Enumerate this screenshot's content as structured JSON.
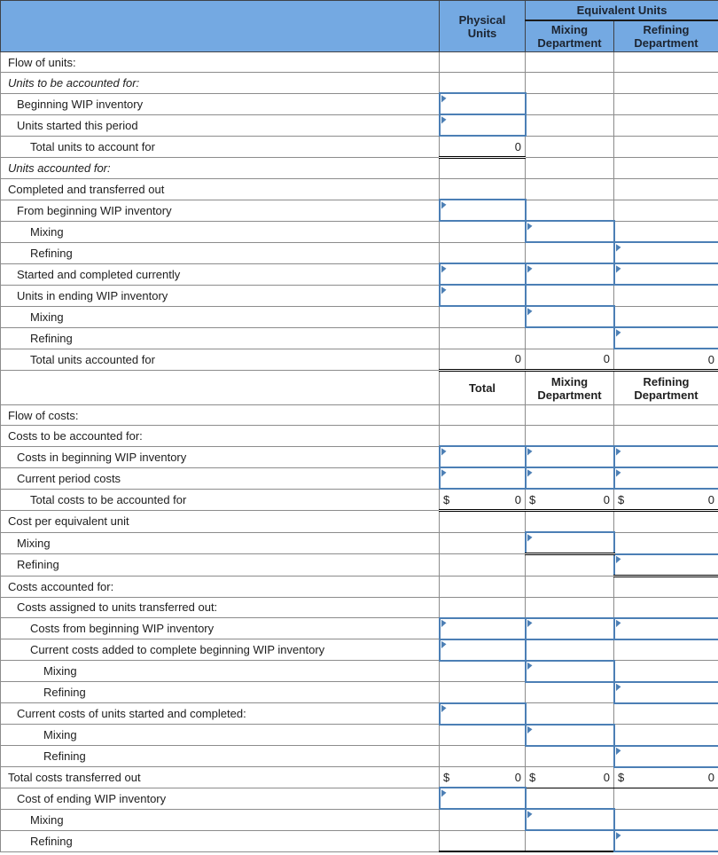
{
  "colors": {
    "header_bg": "#74a9e2",
    "header_text": "#1c2430",
    "input_border": "#4c7fb5",
    "grid_line": "#8c8c8c",
    "total_line": "#000000"
  },
  "header1": {
    "physical_units": "Physical Units",
    "equivalent_units": "Equivalent Units",
    "mixing": "Mixing Department",
    "refining": "Refining Department"
  },
  "header2": {
    "total": "Total",
    "mixing": "Mixing Department",
    "refining": "Refining Department"
  },
  "rows": [
    {
      "label": "Flow of units:",
      "indent": 0,
      "italic": false,
      "cells": [
        {
          "t": "b"
        },
        {
          "t": "b"
        },
        {
          "t": "b"
        }
      ]
    },
    {
      "label": "Units to be accounted for:",
      "indent": 0,
      "italic": true,
      "cells": [
        {
          "t": "b"
        },
        {
          "t": "b"
        },
        {
          "t": "b"
        }
      ]
    },
    {
      "label": "Beginning WIP inventory",
      "indent": 1,
      "italic": false,
      "cells": [
        {
          "t": "in"
        },
        {
          "t": "b"
        },
        {
          "t": "b"
        }
      ]
    },
    {
      "label": "Units started this period",
      "indent": 1,
      "italic": false,
      "cells": [
        {
          "t": "in"
        },
        {
          "t": "b"
        },
        {
          "t": "b"
        }
      ]
    },
    {
      "label": "Total units to account for",
      "indent": 2,
      "italic": false,
      "cells": [
        {
          "t": "z",
          "v": "0"
        },
        {
          "t": "b"
        },
        {
          "t": "b"
        }
      ]
    },
    {
      "label": "Units accounted for:",
      "indent": 0,
      "italic": true,
      "cells": [
        {
          "t": "b"
        },
        {
          "t": "b"
        },
        {
          "t": "b"
        }
      ]
    },
    {
      "label": "Completed and transferred out",
      "indent": 0,
      "italic": false,
      "cells": [
        {
          "t": "b"
        },
        {
          "t": "b"
        },
        {
          "t": "b"
        }
      ]
    },
    {
      "label": "From beginning WIP inventory",
      "indent": 1,
      "italic": false,
      "cells": [
        {
          "t": "in"
        },
        {
          "t": "b"
        },
        {
          "t": "b"
        }
      ]
    },
    {
      "label": "Mixing",
      "indent": 2,
      "italic": false,
      "cells": [
        {
          "t": "b"
        },
        {
          "t": "in"
        },
        {
          "t": "b"
        }
      ]
    },
    {
      "label": "Refining",
      "indent": 2,
      "italic": false,
      "cells": [
        {
          "t": "b"
        },
        {
          "t": "b"
        },
        {
          "t": "in"
        }
      ]
    },
    {
      "label": "Started and completed currently",
      "indent": 1,
      "italic": false,
      "cells": [
        {
          "t": "in"
        },
        {
          "t": "in"
        },
        {
          "t": "in"
        }
      ]
    },
    {
      "label": "Units in ending WIP inventory",
      "indent": 1,
      "italic": false,
      "cells": [
        {
          "t": "in"
        },
        {
          "t": "b"
        },
        {
          "t": "b"
        }
      ]
    },
    {
      "label": "Mixing",
      "indent": 2,
      "italic": false,
      "cells": [
        {
          "t": "b"
        },
        {
          "t": "in"
        },
        {
          "t": "b"
        }
      ]
    },
    {
      "label": "Refining",
      "indent": 2,
      "italic": false,
      "cells": [
        {
          "t": "b"
        },
        {
          "t": "b"
        },
        {
          "t": "in"
        }
      ]
    },
    {
      "label": "Total units accounted for",
      "indent": 2,
      "italic": false,
      "cells": [
        {
          "t": "z",
          "v": "0"
        },
        {
          "t": "z",
          "v": "0"
        },
        {
          "t": "z",
          "v": "0"
        }
      ]
    },
    {
      "type": "mid_header"
    },
    {
      "label": "Flow of costs:",
      "indent": 0,
      "italic": false,
      "cells": [
        {
          "t": "b"
        },
        {
          "t": "b"
        },
        {
          "t": "b"
        }
      ]
    },
    {
      "label": "Costs to be accounted for:",
      "indent": 0,
      "italic": false,
      "cells": [
        {
          "t": "b"
        },
        {
          "t": "b"
        },
        {
          "t": "b"
        }
      ]
    },
    {
      "label": "Costs in beginning WIP inventory",
      "indent": 1,
      "italic": false,
      "cells": [
        {
          "t": "in"
        },
        {
          "t": "in"
        },
        {
          "t": "in"
        }
      ]
    },
    {
      "label": "Current period costs",
      "indent": 1,
      "italic": false,
      "cells": [
        {
          "t": "in"
        },
        {
          "t": "in"
        },
        {
          "t": "in"
        }
      ]
    },
    {
      "label": "Total costs to be accounted for",
      "indent": 2,
      "italic": false,
      "cells": [
        {
          "t": "d2",
          "cur": "$",
          "v": "0"
        },
        {
          "t": "d2",
          "cur": "$",
          "v": "0"
        },
        {
          "t": "d2",
          "cur": "$",
          "v": "0"
        }
      ]
    },
    {
      "label": "Cost per equivalent unit",
      "indent": 0,
      "italic": false,
      "cells": [
        {
          "t": "b"
        },
        {
          "t": "b"
        },
        {
          "t": "b"
        }
      ]
    },
    {
      "label": "Mixing",
      "indent": 1,
      "italic": false,
      "cells": [
        {
          "t": "b"
        },
        {
          "t": "in2"
        },
        {
          "t": "b"
        }
      ]
    },
    {
      "label": "Refining",
      "indent": 1,
      "italic": false,
      "cells": [
        {
          "t": "b"
        },
        {
          "t": "b"
        },
        {
          "t": "in2"
        }
      ]
    },
    {
      "label": "Costs accounted for:",
      "indent": 0,
      "italic": false,
      "cells": [
        {
          "t": "b"
        },
        {
          "t": "b"
        },
        {
          "t": "b"
        }
      ]
    },
    {
      "label": "Costs assigned to units transferred out:",
      "indent": 1,
      "italic": false,
      "cells": [
        {
          "t": "b"
        },
        {
          "t": "b"
        },
        {
          "t": "b"
        }
      ]
    },
    {
      "label": "Costs from beginning WIP inventory",
      "indent": 2,
      "italic": false,
      "cells": [
        {
          "t": "in"
        },
        {
          "t": "in"
        },
        {
          "t": "in"
        }
      ]
    },
    {
      "label": "Current costs added to complete beginning WIP inventory",
      "indent": 2,
      "italic": false,
      "cells": [
        {
          "t": "in"
        },
        {
          "t": "b"
        },
        {
          "t": "b"
        }
      ]
    },
    {
      "label": "Mixing",
      "indent": 3,
      "italic": false,
      "cells": [
        {
          "t": "b"
        },
        {
          "t": "in"
        },
        {
          "t": "b"
        }
      ]
    },
    {
      "label": "Refining",
      "indent": 3,
      "italic": false,
      "cells": [
        {
          "t": "b"
        },
        {
          "t": "b"
        },
        {
          "t": "in"
        }
      ]
    },
    {
      "label": "Current costs of units started and completed:",
      "indent": 1,
      "italic": false,
      "cells": [
        {
          "t": "in"
        },
        {
          "t": "b"
        },
        {
          "t": "b"
        }
      ]
    },
    {
      "label": "Mixing",
      "indent": 3,
      "italic": false,
      "cells": [
        {
          "t": "b"
        },
        {
          "t": "in"
        },
        {
          "t": "b"
        }
      ]
    },
    {
      "label": "Refining",
      "indent": 3,
      "italic": false,
      "cells": [
        {
          "t": "b"
        },
        {
          "t": "b"
        },
        {
          "t": "in"
        }
      ]
    },
    {
      "label": "Total costs transferred out",
      "indent": 0,
      "italic": false,
      "cells": [
        {
          "t": "d1",
          "cur": "$",
          "v": "0"
        },
        {
          "t": "d1",
          "cur": "$",
          "v": "0"
        },
        {
          "t": "d1",
          "cur": "$",
          "v": "0"
        }
      ]
    },
    {
      "label": "Cost of ending WIP inventory",
      "indent": 1,
      "italic": false,
      "cells": [
        {
          "t": "in"
        },
        {
          "t": "b"
        },
        {
          "t": "b"
        }
      ]
    },
    {
      "label": "Mixing",
      "indent": 2,
      "italic": false,
      "cells": [
        {
          "t": "b"
        },
        {
          "t": "in"
        },
        {
          "t": "b"
        }
      ]
    },
    {
      "label": "Refining",
      "indent": 2,
      "italic": false,
      "cells": [
        {
          "t": "b"
        },
        {
          "t": "b"
        },
        {
          "t": "in"
        }
      ]
    }
  ]
}
